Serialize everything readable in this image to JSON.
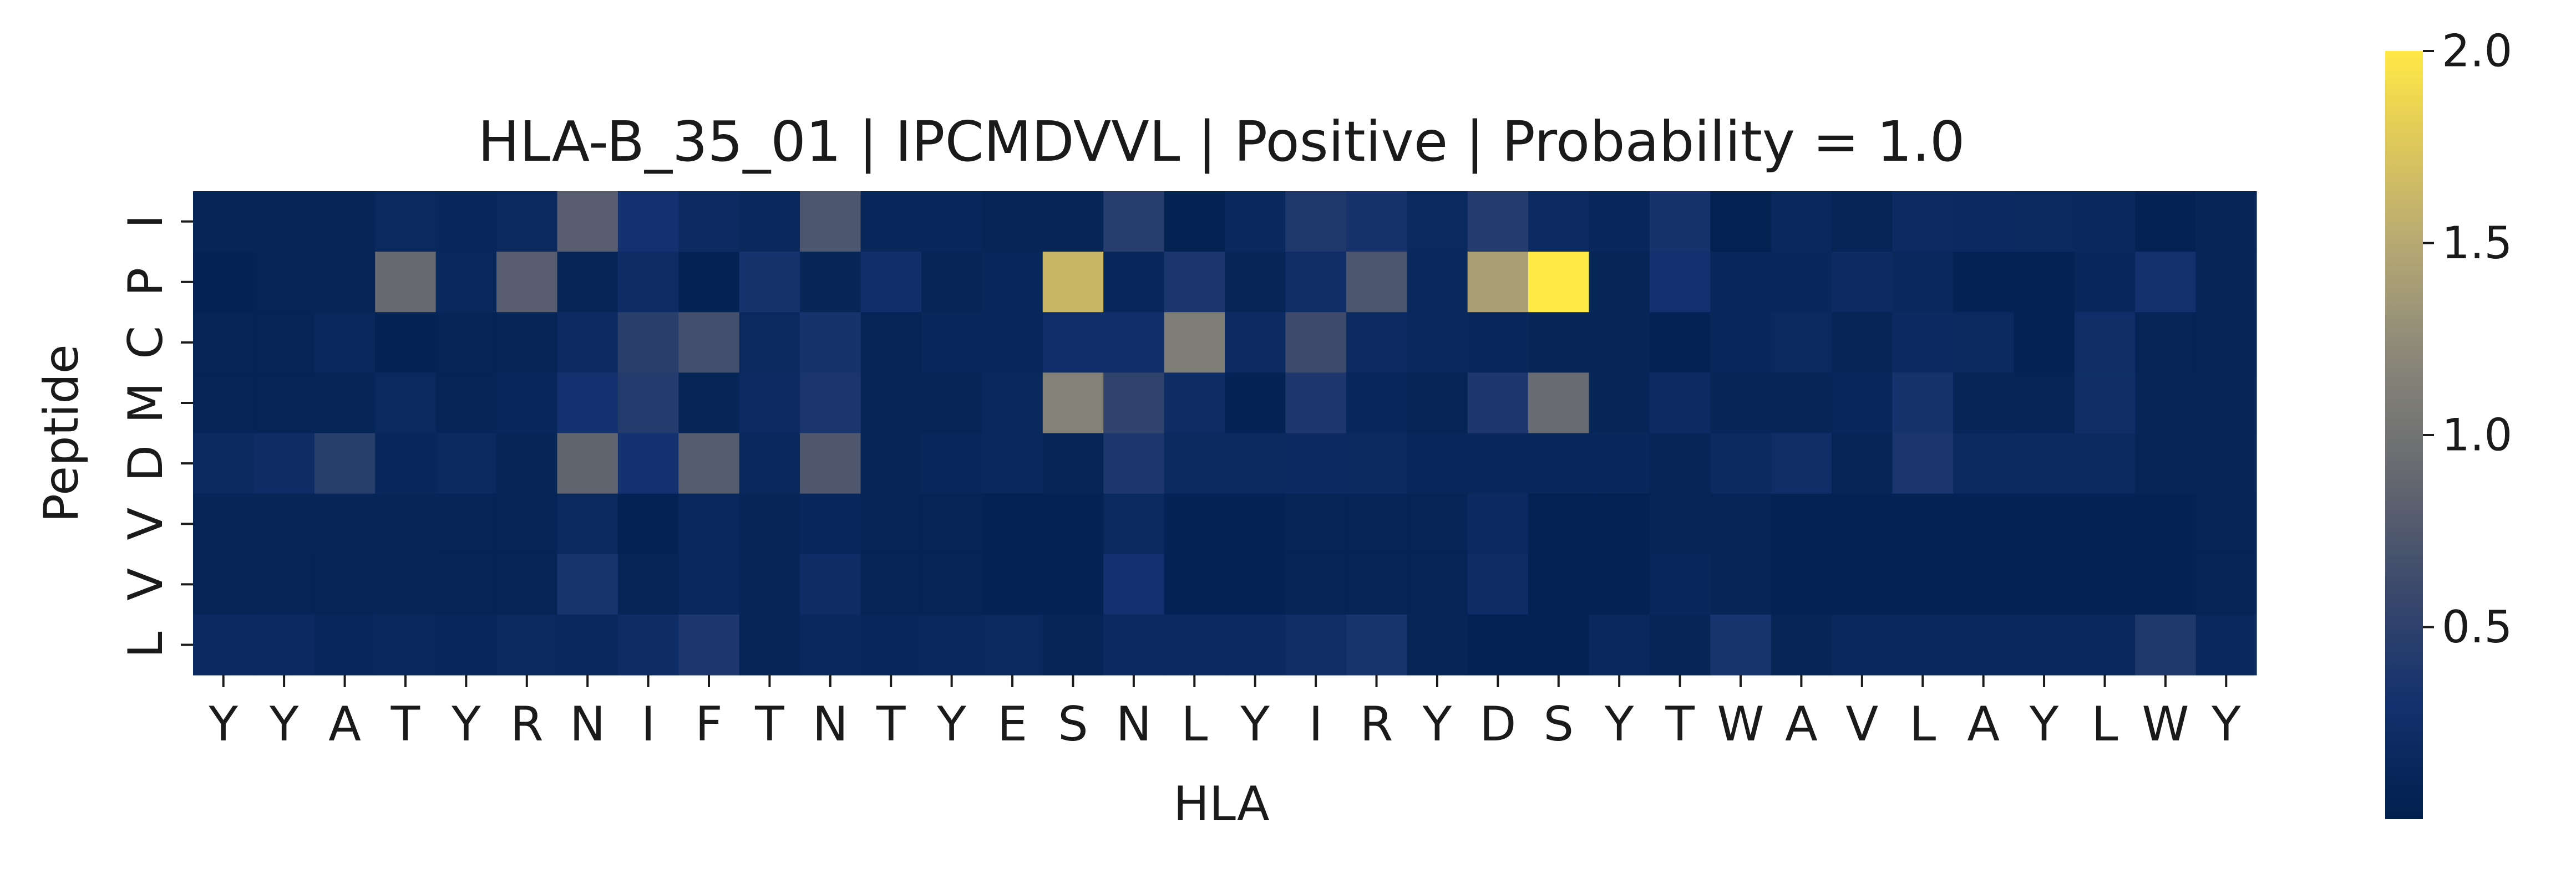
{
  "chart_data": {
    "type": "heatmap",
    "title": "HLA-B_35_01 | IPCMDVVL | Positive | Probability = 1.0",
    "xlabel": "HLA",
    "ylabel": "Peptide",
    "x_categories": [
      "Y",
      "Y",
      "A",
      "T",
      "Y",
      "R",
      "N",
      "I",
      "F",
      "T",
      "N",
      "T",
      "Y",
      "E",
      "S",
      "N",
      "L",
      "Y",
      "I",
      "R",
      "Y",
      "D",
      "S",
      "Y",
      "T",
      "W",
      "A",
      "V",
      "L",
      "A",
      "Y",
      "L",
      "W",
      "Y"
    ],
    "y_categories": [
      "I",
      "P",
      "C",
      "M",
      "D",
      "V",
      "V",
      "L"
    ],
    "values": [
      [
        0.1,
        0.1,
        0.1,
        0.16,
        0.12,
        0.15,
        0.8,
        0.3,
        0.2,
        0.14,
        0.72,
        0.12,
        0.12,
        0.1,
        0.1,
        0.45,
        0.05,
        0.14,
        0.4,
        0.32,
        0.16,
        0.42,
        0.2,
        0.13,
        0.32,
        0.04,
        0.14,
        0.08,
        0.2,
        0.18,
        0.16,
        0.14,
        0.06,
        0.1
      ],
      [
        0.06,
        0.08,
        0.1,
        0.9,
        0.14,
        0.8,
        0.1,
        0.22,
        0.06,
        0.32,
        0.1,
        0.26,
        0.08,
        0.12,
        1.62,
        0.12,
        0.36,
        0.1,
        0.24,
        0.72,
        0.14,
        1.42,
        2.0,
        0.1,
        0.3,
        0.12,
        0.12,
        0.2,
        0.14,
        0.06,
        0.06,
        0.12,
        0.28,
        0.1
      ],
      [
        0.08,
        0.08,
        0.14,
        0.06,
        0.08,
        0.08,
        0.2,
        0.48,
        0.66,
        0.16,
        0.32,
        0.08,
        0.12,
        0.12,
        0.26,
        0.26,
        1.1,
        0.2,
        0.62,
        0.2,
        0.14,
        0.12,
        0.1,
        0.1,
        0.06,
        0.12,
        0.16,
        0.08,
        0.18,
        0.16,
        0.06,
        0.24,
        0.08,
        0.08
      ],
      [
        0.08,
        0.08,
        0.1,
        0.16,
        0.08,
        0.12,
        0.3,
        0.42,
        0.1,
        0.2,
        0.36,
        0.1,
        0.08,
        0.14,
        1.15,
        0.52,
        0.22,
        0.06,
        0.38,
        0.12,
        0.08,
        0.38,
        0.92,
        0.1,
        0.2,
        0.1,
        0.1,
        0.12,
        0.32,
        0.1,
        0.08,
        0.24,
        0.1,
        0.1
      ],
      [
        0.16,
        0.22,
        0.46,
        0.12,
        0.16,
        0.1,
        0.86,
        0.3,
        0.78,
        0.14,
        0.74,
        0.1,
        0.12,
        0.14,
        0.08,
        0.38,
        0.16,
        0.16,
        0.18,
        0.16,
        0.12,
        0.12,
        0.12,
        0.12,
        0.1,
        0.16,
        0.24,
        0.08,
        0.36,
        0.16,
        0.16,
        0.16,
        0.08,
        0.1
      ],
      [
        0.1,
        0.1,
        0.1,
        0.1,
        0.08,
        0.08,
        0.16,
        0.06,
        0.14,
        0.1,
        0.12,
        0.08,
        0.08,
        0.06,
        0.06,
        0.16,
        0.06,
        0.06,
        0.08,
        0.08,
        0.08,
        0.18,
        0.04,
        0.06,
        0.1,
        0.08,
        0.06,
        0.06,
        0.06,
        0.06,
        0.06,
        0.06,
        0.06,
        0.08
      ],
      [
        0.1,
        0.08,
        0.08,
        0.1,
        0.08,
        0.08,
        0.34,
        0.08,
        0.14,
        0.1,
        0.22,
        0.08,
        0.08,
        0.06,
        0.06,
        0.3,
        0.06,
        0.06,
        0.08,
        0.08,
        0.08,
        0.22,
        0.04,
        0.06,
        0.12,
        0.1,
        0.06,
        0.06,
        0.06,
        0.06,
        0.06,
        0.06,
        0.06,
        0.08
      ],
      [
        0.18,
        0.18,
        0.12,
        0.14,
        0.12,
        0.16,
        0.14,
        0.22,
        0.38,
        0.1,
        0.14,
        0.12,
        0.14,
        0.16,
        0.08,
        0.18,
        0.18,
        0.18,
        0.24,
        0.34,
        0.1,
        0.06,
        0.06,
        0.14,
        0.1,
        0.34,
        0.1,
        0.14,
        0.14,
        0.14,
        0.14,
        0.14,
        0.4,
        0.14
      ]
    ],
    "colormap": "cividis",
    "vmin": 0.0,
    "vmax": 2.0,
    "colorbar_ticks": [
      "0.5",
      "1.0",
      "1.5",
      "2.0"
    ]
  }
}
